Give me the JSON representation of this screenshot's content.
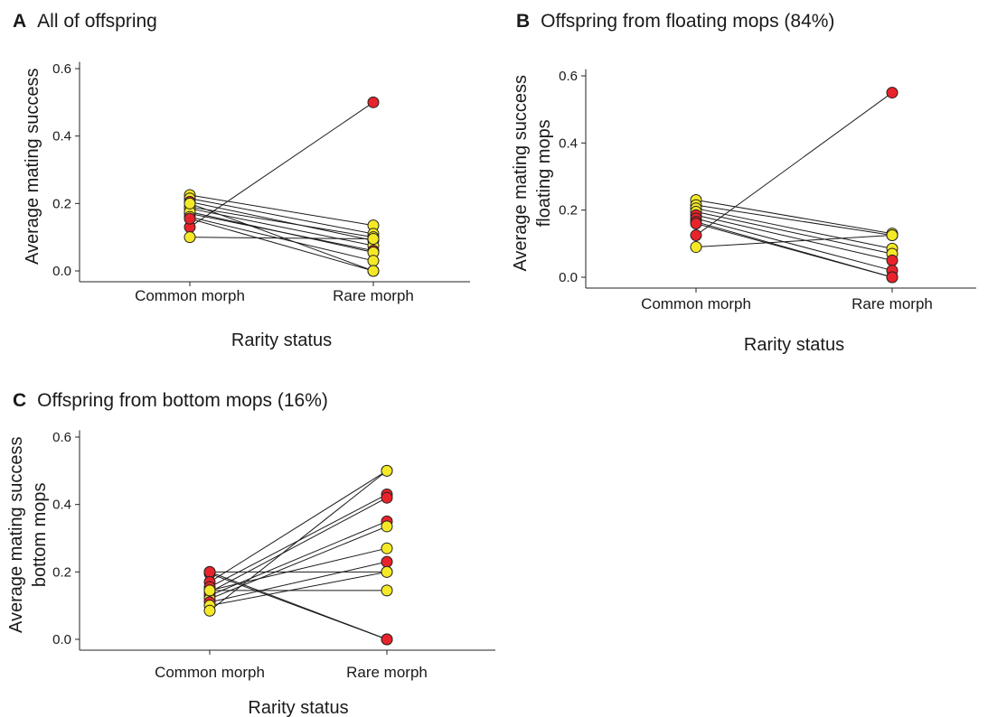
{
  "figure": {
    "point_colors": {
      "red": "#e8232a",
      "yellow": "#f5e926"
    },
    "line_color": "#1a1a1a"
  },
  "chart_data": [
    {
      "id": "A",
      "type": "line",
      "panel_letter": "A",
      "title": "All of offspring",
      "xlabel": "Rarity status",
      "ylabel_lines": [
        "Average mating success"
      ],
      "categories": [
        "Common morph",
        "Rare morph"
      ],
      "ylim": [
        0,
        0.62
      ],
      "yticks": [
        "0.0",
        "0.2",
        "0.4",
        "0.6"
      ],
      "ytick_values": [
        0,
        0.2,
        0.4,
        0.6
      ],
      "grid": false,
      "series": [
        {
          "values": [
            0.13,
            0.5
          ],
          "color": "red"
        },
        {
          "values": [
            0.225,
            0.135
          ],
          "color": "yellow"
        },
        {
          "values": [
            0.215,
            0.11
          ],
          "color": "yellow"
        },
        {
          "values": [
            0.205,
            0.09
          ],
          "color": "red"
        },
        {
          "values": [
            0.19,
            0.1
          ],
          "color": "yellow"
        },
        {
          "values": [
            0.185,
            0.075
          ],
          "color": "yellow"
        },
        {
          "values": [
            0.17,
            0.06
          ],
          "color": "red"
        },
        {
          "values": [
            0.175,
            0.055
          ],
          "color": "yellow"
        },
        {
          "values": [
            0.16,
            0.03
          ],
          "color": "yellow"
        },
        {
          "values": [
            0.155,
            0.0
          ],
          "color": "red"
        },
        {
          "values": [
            0.1,
            0.095
          ],
          "color": "yellow"
        },
        {
          "values": [
            0.2,
            0.0
          ],
          "color": "yellow"
        }
      ]
    },
    {
      "id": "B",
      "type": "line",
      "panel_letter": "B",
      "title": "Offspring from floating mops (84%)",
      "xlabel": "Rarity status",
      "ylabel_lines": [
        "Average mating success",
        "floating mops"
      ],
      "categories": [
        "Common morph",
        "Rare morph"
      ],
      "ylim": [
        0,
        0.62
      ],
      "yticks": [
        "0.0",
        "0.2",
        "0.4",
        "0.6"
      ],
      "ytick_values": [
        0,
        0.2,
        0.4,
        0.6
      ],
      "grid": false,
      "series": [
        {
          "values": [
            0.125,
            0.55
          ],
          "color": "red"
        },
        {
          "values": [
            0.23,
            0.13
          ],
          "color": "yellow"
        },
        {
          "values": [
            0.215,
            0.125
          ],
          "color": "yellow"
        },
        {
          "values": [
            0.205,
            0.085
          ],
          "color": "yellow"
        },
        {
          "values": [
            0.195,
            0.07
          ],
          "color": "yellow"
        },
        {
          "values": [
            0.185,
            0.05
          ],
          "color": "red"
        },
        {
          "values": [
            0.175,
            0.02
          ],
          "color": "red"
        },
        {
          "values": [
            0.165,
            0.0
          ],
          "color": "red"
        },
        {
          "values": [
            0.16,
            0.0
          ],
          "color": "red"
        },
        {
          "values": [
            0.09,
            0.125
          ],
          "color": "yellow"
        }
      ]
    },
    {
      "id": "C",
      "type": "line",
      "panel_letter": "C",
      "title": "Offspring from bottom mops (16%)",
      "xlabel": "Rarity status",
      "ylabel_lines": [
        "Average mating success",
        "bottom mops"
      ],
      "categories": [
        "Common morph",
        "Rare morph"
      ],
      "ylim": [
        0,
        0.62
      ],
      "yticks": [
        "0.0",
        "0.2",
        "0.4",
        "0.6"
      ],
      "ytick_values": [
        0,
        0.2,
        0.4,
        0.6
      ],
      "grid": false,
      "series": [
        {
          "values": [
            0.2,
            0.0
          ],
          "color": "red"
        },
        {
          "values": [
            0.195,
            0.0
          ],
          "color": "red"
        },
        {
          "values": [
            0.2,
            0.2
          ],
          "color": "red"
        },
        {
          "values": [
            0.17,
            0.5
          ],
          "color": "red"
        },
        {
          "values": [
            0.155,
            0.43
          ],
          "color": "red"
        },
        {
          "values": [
            0.14,
            0.42
          ],
          "color": "red"
        },
        {
          "values": [
            0.13,
            0.35
          ],
          "color": "red"
        },
        {
          "values": [
            0.12,
            0.335
          ],
          "color": "yellow"
        },
        {
          "values": [
            0.145,
            0.27
          ],
          "color": "yellow"
        },
        {
          "values": [
            0.11,
            0.23
          ],
          "color": "red"
        },
        {
          "values": [
            0.1,
            0.2
          ],
          "color": "yellow"
        },
        {
          "values": [
            0.145,
            0.145
          ],
          "color": "yellow"
        },
        {
          "values": [
            0.085,
            0.5
          ],
          "color": "yellow"
        }
      ]
    }
  ]
}
